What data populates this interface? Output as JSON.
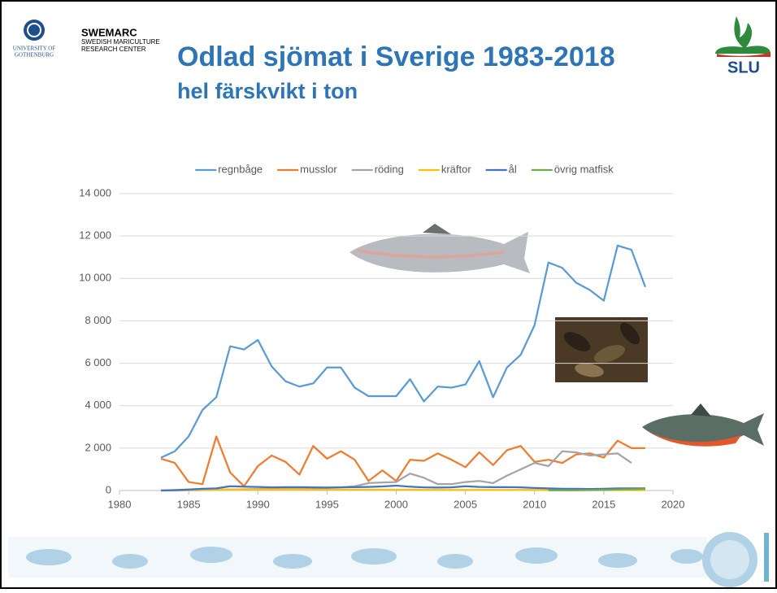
{
  "header": {
    "university": [
      "UNIVERSITY OF",
      "GOTHENBURG"
    ],
    "center_name": "SWEMARC",
    "center_full": [
      "SWEDISH MARICULTURE",
      "RESEARCH CENTER"
    ],
    "title": "Odlad sjömat i Sverige 1983-2018",
    "subtitle": "hel färskvikt i ton",
    "logo_right": "SLU"
  },
  "chart_data": {
    "type": "line",
    "x": [
      1983,
      1984,
      1985,
      1986,
      1987,
      1988,
      1989,
      1990,
      1991,
      1992,
      1993,
      1994,
      1995,
      1996,
      1997,
      1998,
      1999,
      2000,
      2001,
      2002,
      2003,
      2004,
      2005,
      2006,
      2007,
      2008,
      2009,
      2010,
      2011,
      2012,
      2013,
      2014,
      2015,
      2016,
      2017,
      2018
    ],
    "series": [
      {
        "name": "regnbåge",
        "color": "#5b9bd5",
        "values": [
          1550,
          1850,
          2550,
          3800,
          4400,
          6800,
          6650,
          7100,
          5850,
          5150,
          4900,
          5050,
          5800,
          5800,
          4850,
          4450,
          4450,
          4450,
          5250,
          4200,
          4900,
          4850,
          5000,
          6100,
          4400,
          5800,
          6400,
          7800,
          10750,
          10500,
          9800,
          9450,
          8950,
          11550,
          11350,
          9600
        ]
      },
      {
        "name": "musslor",
        "color": "#ed7d31",
        "values": [
          1500,
          1300,
          400,
          300,
          2550,
          850,
          200,
          1150,
          1650,
          1350,
          750,
          2100,
          1500,
          1850,
          1450,
          450,
          950,
          450,
          1450,
          1400,
          1750,
          1450,
          1100,
          1800,
          1200,
          1900,
          2100,
          1350,
          1450,
          1300,
          1700,
          1750,
          1550,
          2350,
          2000,
          2000
        ]
      },
      {
        "name": "röding",
        "color": "#a5a5a5",
        "values": [
          0,
          0,
          10,
          20,
          30,
          50,
          60,
          70,
          80,
          90,
          100,
          110,
          120,
          150,
          200,
          350,
          380,
          400,
          800,
          600,
          300,
          300,
          400,
          450,
          350,
          700,
          1000,
          1300,
          1150,
          1850,
          1800,
          1650,
          1700,
          1750,
          1300,
          null
        ]
      },
      {
        "name": "kräftor",
        "color": "#ffc000",
        "values": [
          10,
          20,
          30,
          40,
          40,
          50,
          50,
          50,
          50,
          50,
          50,
          40,
          40,
          40,
          40,
          40,
          40,
          40,
          40,
          30,
          30,
          30,
          30,
          30,
          30,
          30,
          30,
          30,
          20,
          20,
          20,
          20,
          20,
          20,
          20,
          20
        ]
      },
      {
        "name": "ål",
        "color": "#4472c4",
        "values": [
          0,
          20,
          50,
          80,
          100,
          200,
          180,
          170,
          150,
          160,
          160,
          150,
          140,
          150,
          160,
          170,
          190,
          230,
          180,
          150,
          140,
          150,
          200,
          170,
          160,
          160,
          150,
          120,
          100,
          80,
          80,
          70,
          80,
          100,
          100,
          100
        ]
      },
      {
        "name": "övrig matfisk",
        "color": "#70ad47",
        "values": [
          null,
          null,
          null,
          null,
          null,
          null,
          null,
          null,
          null,
          null,
          null,
          null,
          null,
          null,
          null,
          null,
          null,
          null,
          null,
          null,
          null,
          null,
          null,
          null,
          null,
          null,
          null,
          null,
          10,
          10,
          10,
          20,
          30,
          50,
          60,
          70
        ]
      }
    ],
    "xlim": [
      1980,
      2020
    ],
    "xticks": [
      1980,
      1985,
      1990,
      1995,
      2000,
      2005,
      2010,
      2015,
      2020
    ],
    "ylim": [
      0,
      14000
    ],
    "yticks": [
      0,
      {
        "value": 2000,
        "label": "2 000"
      },
      {
        "value": 4000,
        "label": "4 000"
      },
      {
        "value": 6000,
        "label": "6 000"
      },
      {
        "value": 8000,
        "label": "8 000"
      },
      {
        "value": 10000,
        "label": "10 000"
      },
      {
        "value": 12000,
        "label": "12 000"
      },
      {
        "value": 14000,
        "label": "14 000"
      }
    ],
    "grid": true,
    "legend": "top"
  }
}
